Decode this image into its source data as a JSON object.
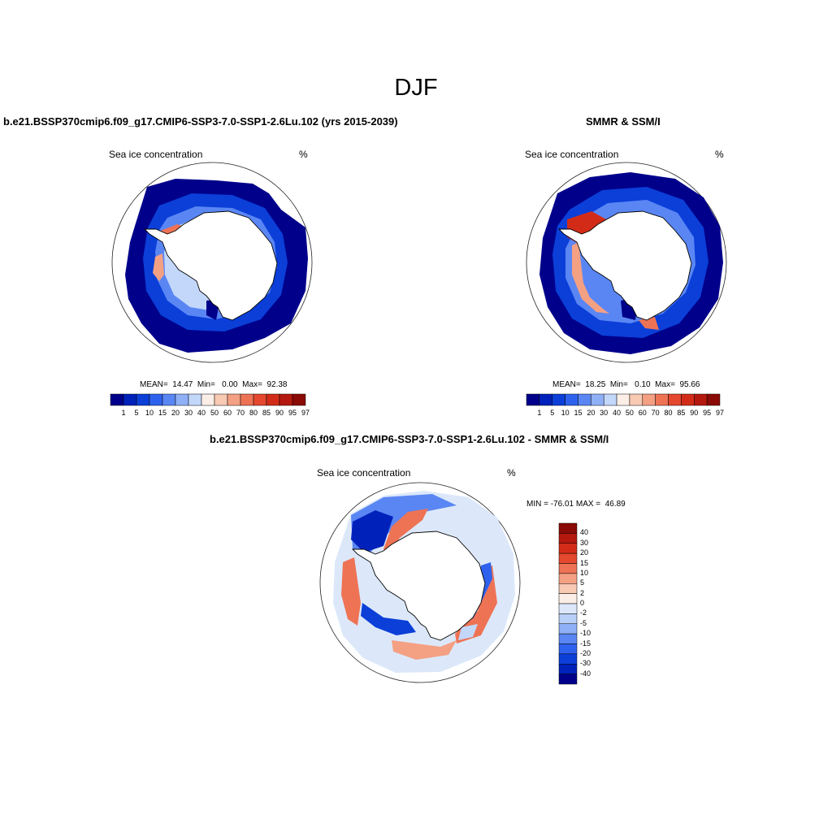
{
  "figure": {
    "title": "DJF"
  },
  "panels": [
    {
      "title": "b.e21.BSSP370cmip6.f09_g17.CMIP6-SSP3-7.0-SSP1-2.6Lu.102 (yrs 2015-2039)",
      "variable": "Sea ice concentration",
      "units": "%",
      "stats": "MEAN=  14.47  Min=   0.00  Max=  92.38"
    },
    {
      "title": "SMMR & SSM/I",
      "variable": "Sea ice concentration",
      "units": "%",
      "stats": "MEAN=  18.25  Min=   0.10  Max=  95.66"
    },
    {
      "title": "b.e21.BSSP370cmip6.f09_g17.CMIP6-SSP3-7.0-SSP1-2.6Lu.102 - SMMR & SSM/I",
      "variable": "Sea ice concentration",
      "units": "%",
      "stats": "MIN = -76.01 MAX =  46.89"
    }
  ],
  "colorbar_concentration": {
    "ticks": [
      "1",
      "5",
      "10",
      "15",
      "20",
      "30",
      "40",
      "50",
      "60",
      "70",
      "80",
      "85",
      "90",
      "95",
      "97"
    ],
    "colors": [
      "#00008b",
      "#0022bb",
      "#0b3fd8",
      "#2e62ee",
      "#5a86f4",
      "#8fb0f7",
      "#c3d7fb",
      "#fbeee6",
      "#f8c9b3",
      "#f4a083",
      "#ee7355",
      "#e4482e",
      "#d22c18",
      "#b5180e",
      "#8a0a06"
    ]
  },
  "colorbar_difference": {
    "ticks": [
      "40",
      "30",
      "20",
      "15",
      "10",
      "5",
      "2",
      "0",
      "-2",
      "-5",
      "-10",
      "-15",
      "-20",
      "-30",
      "-40"
    ],
    "colors": [
      "#8a0a06",
      "#b5180e",
      "#d22c18",
      "#e4482e",
      "#ee7355",
      "#f4a083",
      "#f8c9b3",
      "#fbeee6",
      "#dce8fa",
      "#b8cff7",
      "#8fb0f7",
      "#5a86f4",
      "#2e62ee",
      "#0b3fd8",
      "#0022bb",
      "#00008b"
    ]
  }
}
